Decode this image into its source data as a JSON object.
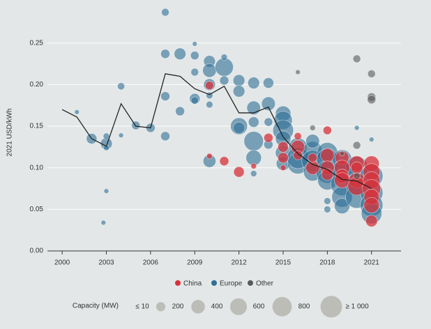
{
  "chart_data": {
    "type": "scatter",
    "y_label": "2021 USD/kWh",
    "xlim": [
      1999,
      2023
    ],
    "xticks": [
      2000,
      2003,
      2006,
      2009,
      2012,
      2015,
      2018,
      2021
    ],
    "ylim": [
      0,
      0.29
    ],
    "yticks": [
      {
        "value": 0,
        "label": "0.00"
      },
      0.05,
      {
        "value": 0.1,
        "label": "0.10"
      },
      0.15,
      {
        "value": 0.2,
        "label": "0.20"
      },
      0.25
    ],
    "grid": true,
    "series": [
      {
        "name": "Europe",
        "color": "#2f6f96",
        "x": [
          2001,
          2002,
          2003,
          2003,
          2003,
          2003,
          2002.8,
          2004,
          2004,
          2005,
          2006,
          2007,
          2007,
          2007,
          2007,
          2008,
          2008,
          2009,
          2009,
          2009,
          2009,
          2009,
          2010,
          2010,
          2010,
          2010,
          2010,
          2010,
          2011,
          2011,
          2011,
          2012,
          2012,
          2012,
          2012,
          2013,
          2013,
          2013,
          2013,
          2013,
          2013,
          2014,
          2014,
          2014,
          2014,
          2015,
          2015,
          2015,
          2015,
          2015,
          2015,
          2016,
          2016,
          2016,
          2017,
          2017,
          2017,
          2017,
          2018,
          2018,
          2018,
          2018,
          2018,
          2018,
          2019,
          2019,
          2019,
          2019,
          2019,
          2020,
          2020,
          2020,
          2020,
          2021,
          2021,
          2021,
          2021,
          2021
        ],
        "values": [
          0.167,
          0.135,
          0.129,
          0.138,
          0.124,
          0.072,
          0.034,
          0.198,
          0.139,
          0.151,
          0.148,
          0.287,
          0.237,
          0.186,
          0.138,
          0.237,
          0.168,
          0.249,
          0.235,
          0.215,
          0.183,
          0.181,
          0.228,
          0.217,
          0.2,
          0.187,
          0.176,
          0.108,
          0.221,
          0.233,
          0.205,
          0.205,
          0.192,
          0.15,
          0.148,
          0.202,
          0.172,
          0.155,
          0.132,
          0.112,
          0.093,
          0.202,
          0.177,
          0.155,
          0.128,
          0.165,
          0.157,
          0.145,
          0.135,
          0.118,
          0.105,
          0.125,
          0.105,
          0.112,
          0.12,
          0.108,
          0.095,
          0.132,
          0.118,
          0.11,
          0.095,
          0.085,
          0.06,
          0.05,
          0.11,
          0.095,
          0.08,
          0.065,
          0.054,
          0.1,
          0.08,
          0.065,
          0.148,
          0.09,
          0.07,
          0.055,
          0.045,
          0.134
        ],
        "sizes": [
          10,
          150,
          200,
          30,
          20,
          10,
          10,
          50,
          10,
          80,
          100,
          60,
          100,
          100,
          100,
          200,
          100,
          10,
          80,
          60,
          150,
          50,
          200,
          300,
          200,
          40,
          40,
          250,
          600,
          30,
          100,
          200,
          200,
          500,
          200,
          200,
          300,
          150,
          700,
          400,
          30,
          150,
          300,
          80,
          100,
          400,
          600,
          800,
          400,
          400,
          300,
          600,
          800,
          900,
          700,
          900,
          600,
          300,
          800,
          900,
          1000,
          700,
          40,
          40,
          700,
          1000,
          1000,
          800,
          400,
          1000,
          1000,
          1000,
          10,
          1000,
          1000,
          1000,
          800,
          10
        ]
      },
      {
        "name": "China",
        "color": "#d7313a",
        "x": [
          2010,
          2010,
          2011,
          2012,
          2013,
          2014,
          2015,
          2015,
          2015,
          2016,
          2016,
          2016,
          2017,
          2017,
          2018,
          2018,
          2018,
          2018,
          2019,
          2019,
          2019,
          2019,
          2020,
          2020,
          2020,
          2020,
          2021,
          2021,
          2021,
          2021,
          2021,
          2021,
          2021
        ],
        "values": [
          0.114,
          0.199,
          0.108,
          0.095,
          0.102,
          0.136,
          0.125,
          0.112,
          0.1,
          0.125,
          0.138,
          0.115,
          0.1,
          0.112,
          0.145,
          0.115,
          0.1,
          0.092,
          0.112,
          0.1,
          0.09,
          0.085,
          0.105,
          0.085,
          0.078,
          0.1,
          0.105,
          0.095,
          0.085,
          0.075,
          0.065,
          0.055,
          0.036
        ],
        "sizes": [
          20,
          80,
          100,
          150,
          20,
          100,
          150,
          150,
          20,
          300,
          50,
          100,
          300,
          100,
          80,
          300,
          300,
          200,
          300,
          400,
          300,
          400,
          400,
          400,
          600,
          200,
          400,
          500,
          500,
          600,
          400,
          400,
          200
        ]
      },
      {
        "name": "Other",
        "color": "#5a5a5a",
        "x": [
          2016,
          2017,
          2019,
          2020,
          2020,
          2020,
          2021,
          2021,
          2021
        ],
        "values": [
          0.215,
          0.148,
          0.117,
          0.231,
          0.127,
          0.09,
          0.213,
          0.185,
          0.182
        ],
        "sizes": [
          10,
          20,
          10,
          60,
          60,
          40,
          60,
          80,
          80
        ]
      }
    ],
    "line": {
      "color": "#222222",
      "x": [
        2000,
        2001,
        2002,
        2003,
        2004,
        2005,
        2006,
        2007,
        2008,
        2009,
        2010,
        2011,
        2012,
        2013,
        2014,
        2015,
        2016,
        2017,
        2018,
        2019,
        2020,
        2021
      ],
      "values": [
        0.17,
        0.161,
        0.135,
        0.126,
        0.177,
        0.15,
        0.148,
        0.213,
        0.21,
        0.195,
        0.188,
        0.198,
        0.166,
        0.166,
        0.173,
        0.137,
        0.117,
        0.104,
        0.098,
        0.086,
        0.084,
        0.075
      ]
    },
    "size_legend": {
      "title": "Capacity (MW)",
      "items": [
        {
          "value": 10,
          "label": "≤ 10"
        },
        200,
        400,
        600,
        800,
        {
          "value": 1000,
          "label": "≥ 1 000"
        }
      ]
    }
  }
}
